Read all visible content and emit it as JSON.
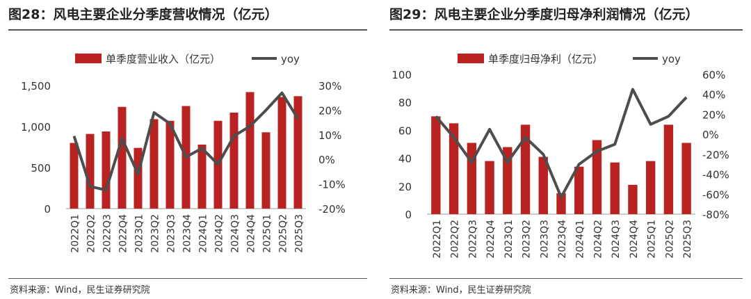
{
  "chart_data": [
    {
      "type": "bar",
      "title": "图28：风电主要企业分季度营收情况（亿元）",
      "source": "资料来源：Wind，民生证券研究院",
      "categories": [
        "2022Q1",
        "2022Q2",
        "2022Q3",
        "2022Q4",
        "2023Q1",
        "2023Q2",
        "2023Q3",
        "2023Q4",
        "2024Q1",
        "2024Q2",
        "2024Q3",
        "2024Q4",
        "2025Q1",
        "2025Q2",
        "2025Q3"
      ],
      "series": [
        {
          "name": "单季度营业收入（亿元）",
          "axis": "left",
          "type": "bar",
          "values": [
            800,
            910,
            940,
            1240,
            740,
            1090,
            1070,
            1250,
            780,
            1070,
            1170,
            1420,
            930,
            1360,
            1370
          ]
        },
        {
          "name": "yoy",
          "axis": "right",
          "type": "line",
          "values": [
            0.095,
            -0.11,
            -0.125,
            0.085,
            -0.06,
            0.19,
            0.145,
            0.01,
            0.045,
            -0.02,
            0.095,
            0.135,
            0.2,
            0.27,
            0.165
          ]
        }
      ],
      "ylim": [
        0,
        1500
      ],
      "y_ticks": [
        0,
        500,
        1000,
        1500
      ],
      "y_tick_labels": [
        "0",
        "500",
        "1,000",
        "1,500"
      ],
      "y2lim": [
        -0.2,
        0.3
      ],
      "y2_ticks": [
        -0.2,
        -0.1,
        0,
        0.1,
        0.2,
        0.3
      ],
      "y2_tick_labels": [
        "-20%",
        "-10%",
        "0%",
        "10%",
        "20%",
        "30%"
      ],
      "legend": "top",
      "grid": false
    },
    {
      "type": "bar",
      "title": "图29：风电主要企业分季度归母净利润情况（亿元）",
      "source": "资料来源：Wind，民生证券研究院",
      "categories": [
        "2022Q1",
        "2022Q2",
        "2022Q3",
        "2022Q4",
        "2023Q1",
        "2023Q2",
        "2023Q3",
        "2023Q4",
        "2024Q1",
        "2024Q2",
        "2024Q3",
        "2024Q4",
        "2025Q1",
        "2025Q2",
        "2025Q3"
      ],
      "series": [
        {
          "name": "单季度归母净利（亿元）",
          "axis": "left",
          "type": "bar",
          "values": [
            70,
            65,
            51,
            38,
            48,
            64,
            41,
            15,
            34,
            53,
            37,
            21,
            38,
            64,
            51
          ]
        },
        {
          "name": "yoy",
          "axis": "right",
          "type": "line",
          "values": [
            0.18,
            -0.03,
            -0.28,
            0.05,
            -0.28,
            -0.03,
            -0.2,
            -0.63,
            -0.3,
            -0.17,
            -0.1,
            0.45,
            0.1,
            0.18,
            0.37
          ]
        }
      ],
      "ylim": [
        0,
        100
      ],
      "y_ticks": [
        0,
        20,
        40,
        60,
        80,
        100
      ],
      "y_tick_labels": [
        "0",
        "20",
        "40",
        "60",
        "80",
        "100"
      ],
      "y2lim": [
        -0.8,
        0.6
      ],
      "y2_ticks": [
        -0.8,
        -0.6,
        -0.4,
        -0.2,
        0,
        0.2,
        0.4,
        0.6
      ],
      "y2_tick_labels": [
        "-80%",
        "-60%",
        "-40%",
        "-20%",
        "0%",
        "20%",
        "40%",
        "60%"
      ],
      "legend": "top",
      "grid": false
    }
  ],
  "colors": {
    "bar": "#B82220",
    "line": "#4D4D4D",
    "axis": "#999999",
    "text": "#333333"
  }
}
